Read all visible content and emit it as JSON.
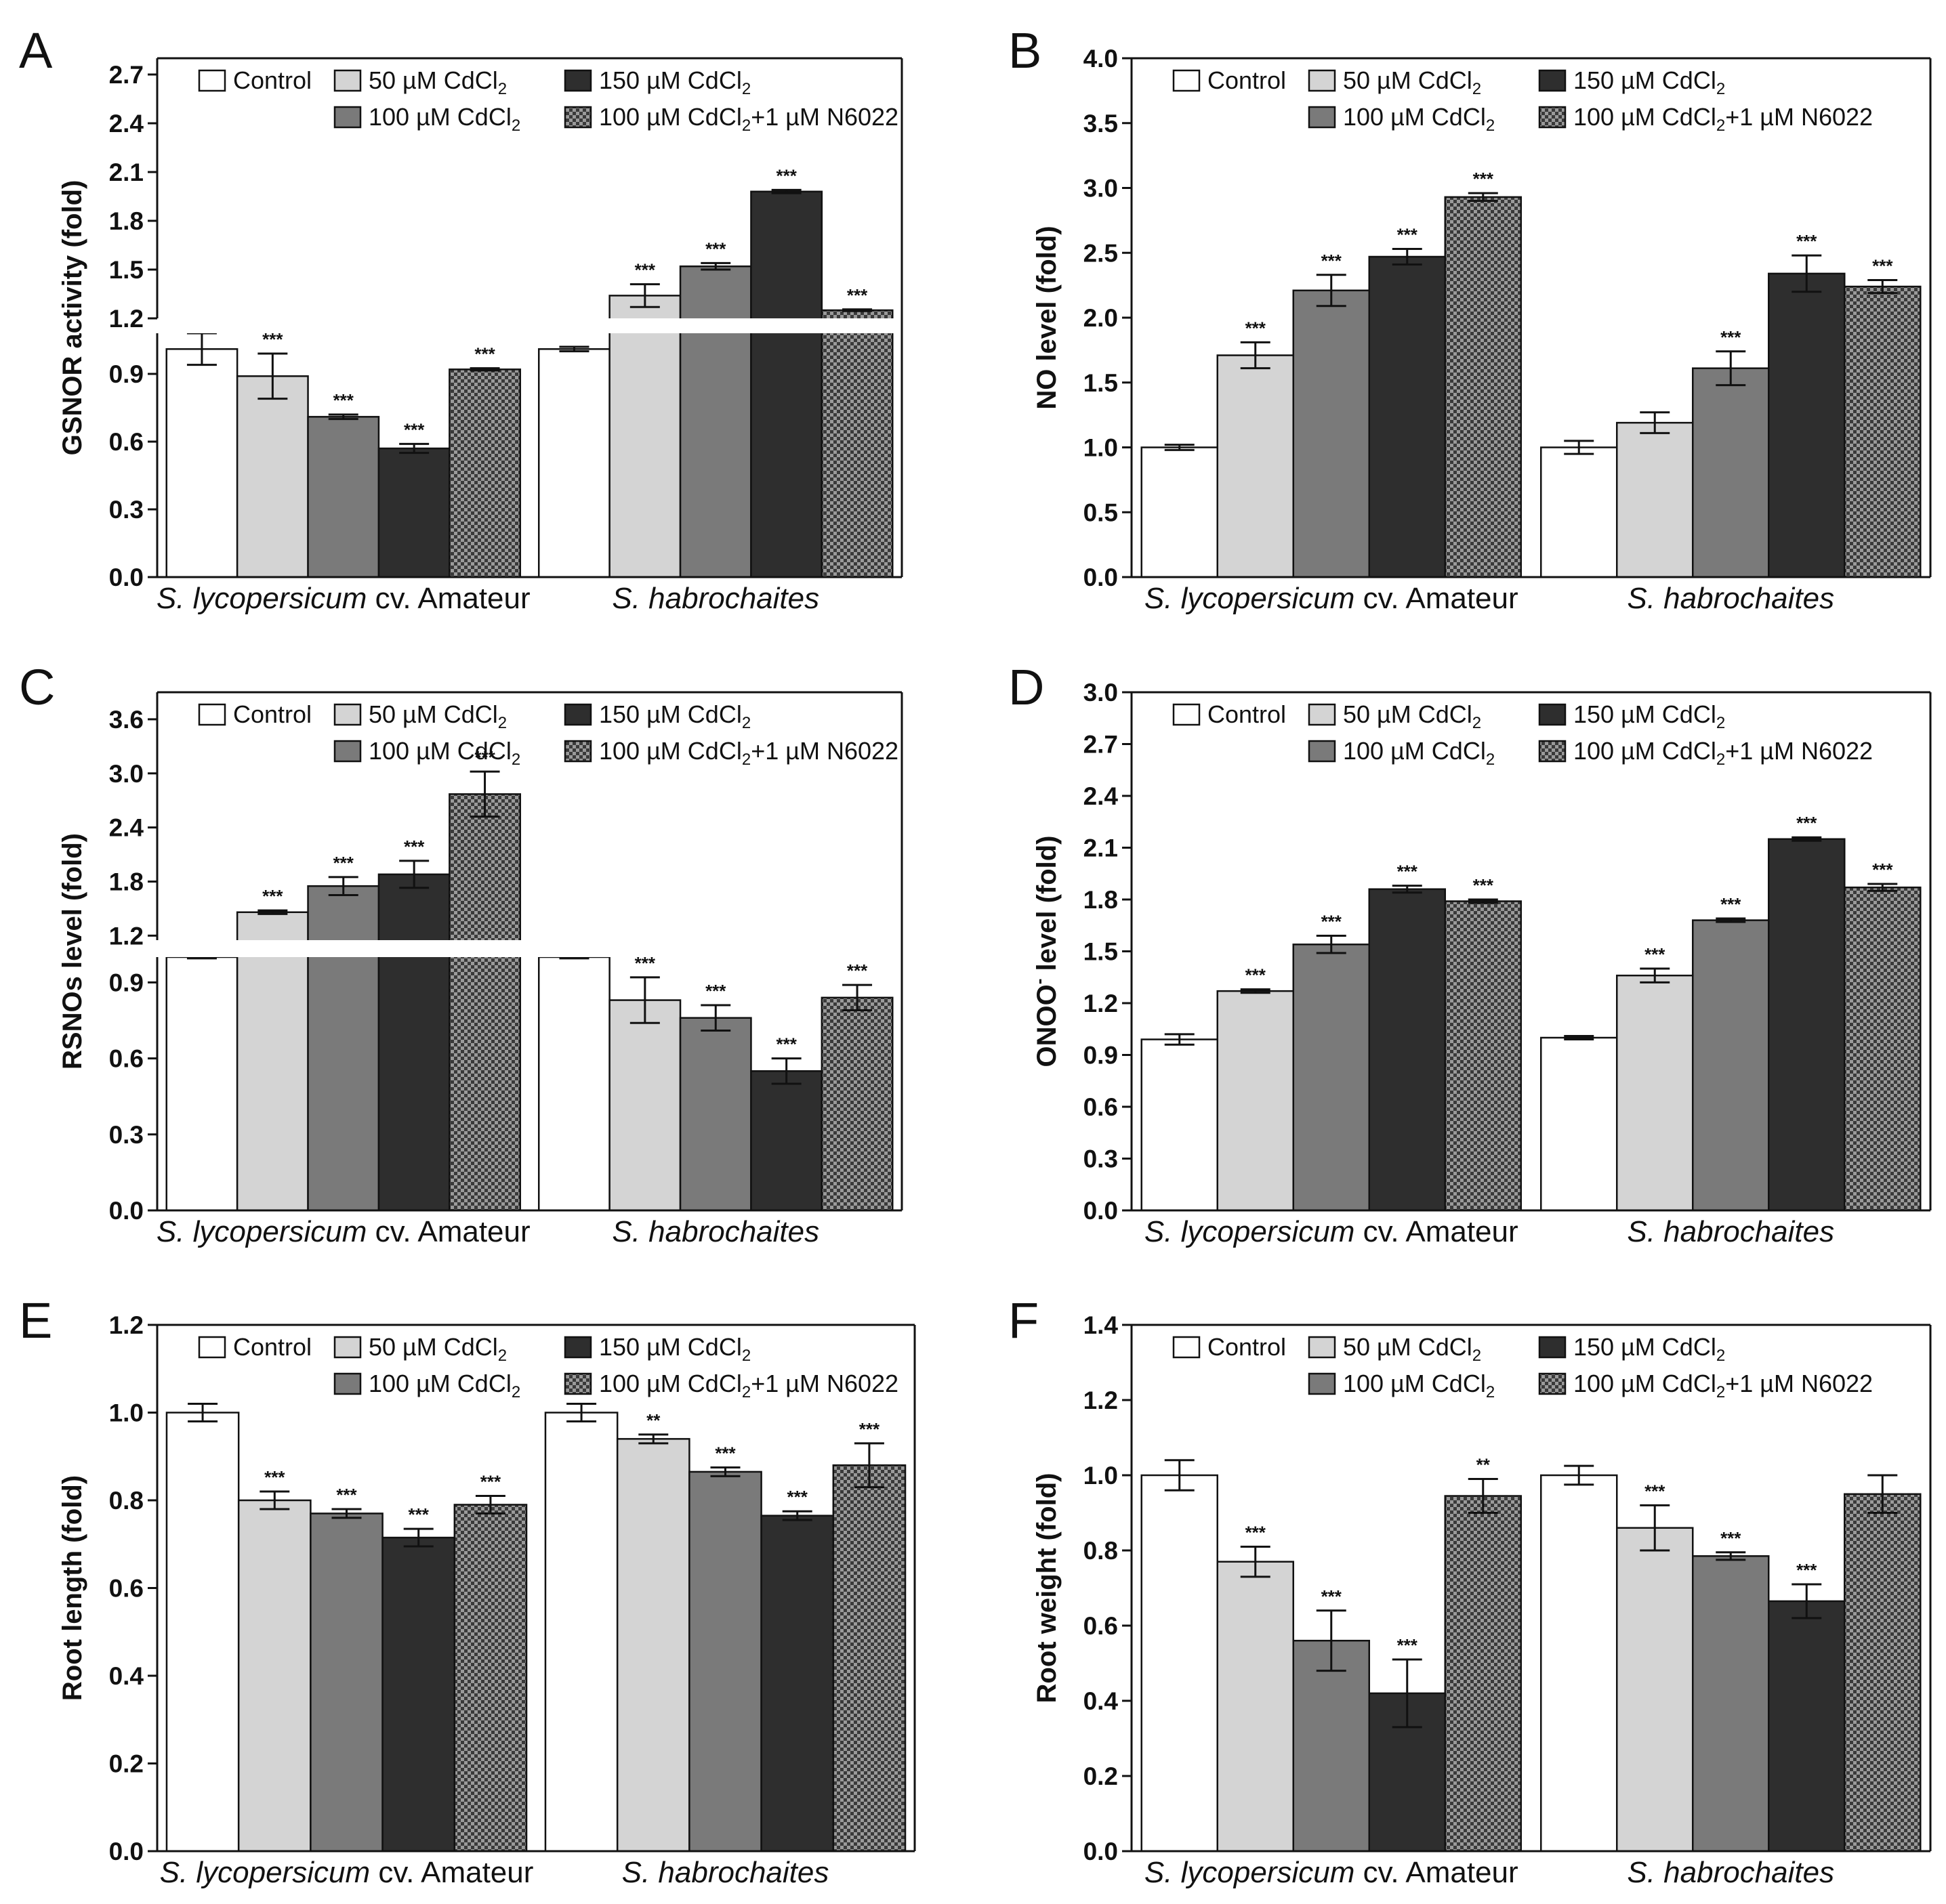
{
  "series_names": [
    "Control",
    "50 µM CdCl2",
    "100 µM CdCl2",
    "150 µM CdCl2",
    "100 µM CdCl2+1 µM N6022"
  ],
  "legend": [
    {
      "text": "Control",
      "sub": "",
      "tail": ""
    },
    {
      "text": "50 µM CdCl",
      "sub": "2",
      "tail": ""
    },
    {
      "text": "150 µM CdCl",
      "sub": "2",
      "tail": ""
    },
    {
      "text": "100 µM CdCl",
      "sub": "2",
      "tail": ""
    },
    {
      "text": "100 µM CdCl",
      "sub": "2",
      "tail": "+1 µM N6022"
    }
  ],
  "category_parts": [
    {
      "italic": "S. lycopersicum",
      "normal": " cv. Amateur"
    },
    {
      "italic": "S. habrochaites",
      "normal": ""
    }
  ],
  "colors": {
    "control": "#ffffff",
    "cd50": "#d4d4d4",
    "cd100": "#7a7a7a",
    "cd150": "#2e2e2e",
    "n6022_dark": "#3a3a3a",
    "n6022_light": "#9a9a9a",
    "axis": "#111111"
  },
  "chart_data": [
    {
      "panel": "A",
      "type": "bar",
      "ylabel": "GSNOR activity (fold)",
      "categories": [
        "S. lycopersicum cv. Amateur",
        "S. habrochaites"
      ],
      "broken_axis": true,
      "ylim_lower": [
        0,
        1.08
      ],
      "ylim_upper": [
        1.2,
        2.8
      ],
      "yticks": [
        "0.0",
        "0.3",
        "0.6",
        "0.9",
        "1.2",
        "1.5",
        "1.8",
        "2.1",
        "2.4",
        "2.7"
      ],
      "series": [
        {
          "name": "Control",
          "values": [
            1.01,
            1.01
          ],
          "errors": [
            0.07,
            0.01
          ],
          "sig": [
            "",
            ""
          ]
        },
        {
          "name": "50 µM CdCl2",
          "values": [
            0.89,
            1.34
          ],
          "errors": [
            0.1,
            0.07
          ],
          "sig": [
            "***",
            "***"
          ]
        },
        {
          "name": "100 µM CdCl2",
          "values": [
            0.71,
            1.52
          ],
          "errors": [
            0.01,
            0.02
          ],
          "sig": [
            "***",
            "***"
          ]
        },
        {
          "name": "150 µM CdCl2",
          "values": [
            0.57,
            1.98
          ],
          "errors": [
            0.02,
            0.01
          ],
          "sig": [
            "***",
            "***"
          ]
        },
        {
          "name": "100 µM CdCl2+1 µM N6022",
          "values": [
            0.92,
            1.25
          ],
          "errors": [
            0.005,
            0.005
          ],
          "sig": [
            "***",
            "***"
          ]
        }
      ]
    },
    {
      "panel": "B",
      "type": "bar",
      "ylabel": "NO level (fold)",
      "categories": [
        "S. lycopersicum cv. Amateur",
        "S. habrochaites"
      ],
      "broken_axis": false,
      "ylim": [
        0,
        4.0
      ],
      "yticks": [
        "0.0",
        "0.5",
        "1.0",
        "1.5",
        "2.0",
        "2.5",
        "3.0",
        "3.5",
        "4.0"
      ],
      "series": [
        {
          "name": "Control",
          "values": [
            1.0,
            1.0
          ],
          "errors": [
            0.02,
            0.05
          ],
          "sig": [
            "",
            ""
          ]
        },
        {
          "name": "50 µM CdCl2",
          "values": [
            1.71,
            1.19
          ],
          "errors": [
            0.1,
            0.08
          ],
          "sig": [
            "***",
            ""
          ]
        },
        {
          "name": "100 µM CdCl2",
          "values": [
            2.21,
            1.61
          ],
          "errors": [
            0.12,
            0.13
          ],
          "sig": [
            "***",
            "***"
          ]
        },
        {
          "name": "150 µM CdCl2",
          "values": [
            2.47,
            2.34
          ],
          "errors": [
            0.06,
            0.14
          ],
          "sig": [
            "***",
            "***"
          ]
        },
        {
          "name": "100 µM CdCl2+1 µM N6022",
          "values": [
            2.93,
            2.24
          ],
          "errors": [
            0.03,
            0.05
          ],
          "sig": [
            "***",
            "***"
          ]
        }
      ]
    },
    {
      "panel": "C",
      "type": "bar",
      "ylabel": "RSNOs level (fold)",
      "categories": [
        "S. lycopersicum cv. Amateur",
        "S. habrochaites"
      ],
      "broken_axis": true,
      "ylim_lower": [
        0,
        1.0
      ],
      "ylim_upper": [
        1.15,
        3.9
      ],
      "yticks": [
        "0.0",
        "0.3",
        "0.6",
        "0.9",
        "1.2",
        "1.8",
        "2.4",
        "3.0",
        "3.6"
      ],
      "series": [
        {
          "name": "Control",
          "values": [
            1.0,
            1.0
          ],
          "errors": [
            0.005,
            0.005
          ],
          "sig": [
            "",
            ""
          ]
        },
        {
          "name": "50 µM CdCl2",
          "values": [
            1.46,
            0.83
          ],
          "errors": [
            0.02,
            0.09
          ],
          "sig": [
            "***",
            "***"
          ]
        },
        {
          "name": "100 µM CdCl2",
          "values": [
            1.75,
            0.76
          ],
          "errors": [
            0.1,
            0.05
          ],
          "sig": [
            "***",
            "***"
          ]
        },
        {
          "name": "150 µM CdCl2",
          "values": [
            1.88,
            0.55
          ],
          "errors": [
            0.15,
            0.05
          ],
          "sig": [
            "***",
            "***"
          ]
        },
        {
          "name": "100 µM CdCl2+1 µM N6022",
          "values": [
            2.77,
            0.84
          ],
          "errors": [
            0.25,
            0.05
          ],
          "sig": [
            "***",
            "***"
          ]
        }
      ]
    },
    {
      "panel": "D",
      "type": "bar",
      "ylabel": "ONOO- level (fold)",
      "categories": [
        "S. lycopersicum cv. Amateur",
        "S. habrochaites"
      ],
      "broken_axis": false,
      "ylim": [
        0,
        3.0
      ],
      "yticks": [
        "0.0",
        "0.3",
        "0.6",
        "0.9",
        "1.2",
        "1.5",
        "1.8",
        "2.1",
        "2.4",
        "2.7",
        "3.0"
      ],
      "series": [
        {
          "name": "Control",
          "values": [
            0.99,
            1.0
          ],
          "errors": [
            0.03,
            0.01
          ],
          "sig": [
            "",
            ""
          ]
        },
        {
          "name": "50 µM CdCl2",
          "values": [
            1.27,
            1.36
          ],
          "errors": [
            0.01,
            0.04
          ],
          "sig": [
            "***",
            "***"
          ]
        },
        {
          "name": "100 µM CdCl2",
          "values": [
            1.54,
            1.68
          ],
          "errors": [
            0.05,
            0.01
          ],
          "sig": [
            "***",
            "***"
          ]
        },
        {
          "name": "150 µM CdCl2",
          "values": [
            1.86,
            2.15
          ],
          "errors": [
            0.02,
            0.01
          ],
          "sig": [
            "***",
            "***"
          ]
        },
        {
          "name": "100 µM CdCl2+1 µM N6022",
          "values": [
            1.79,
            1.87
          ],
          "errors": [
            0.01,
            0.02
          ],
          "sig": [
            "***",
            "***"
          ]
        }
      ]
    },
    {
      "panel": "E",
      "type": "bar",
      "ylabel": "Root length (fold)",
      "categories": [
        "S. lycopersicum cv. Amateur",
        "S. habrochaites"
      ],
      "broken_axis": false,
      "ylim": [
        0,
        1.2
      ],
      "yticks": [
        "0.0",
        "0.2",
        "0.4",
        "0.6",
        "0.8",
        "1.0",
        "1.2"
      ],
      "series": [
        {
          "name": "Control",
          "values": [
            1.0,
            1.0
          ],
          "errors": [
            0.02,
            0.02
          ],
          "sig": [
            "",
            ""
          ]
        },
        {
          "name": "50 µM CdCl2",
          "values": [
            0.8,
            0.94
          ],
          "errors": [
            0.02,
            0.01
          ],
          "sig": [
            "***",
            "**"
          ]
        },
        {
          "name": "100 µM CdCl2",
          "values": [
            0.77,
            0.865
          ],
          "errors": [
            0.01,
            0.01
          ],
          "sig": [
            "***",
            "***"
          ]
        },
        {
          "name": "150 µM CdCl2",
          "values": [
            0.715,
            0.765
          ],
          "errors": [
            0.02,
            0.01
          ],
          "sig": [
            "***",
            "***"
          ]
        },
        {
          "name": "100 µM CdCl2+1 µM N6022",
          "values": [
            0.79,
            0.88
          ],
          "errors": [
            0.02,
            0.05
          ],
          "sig": [
            "***",
            "***"
          ]
        }
      ]
    },
    {
      "panel": "F",
      "type": "bar",
      "ylabel": "Root weight (fold)",
      "categories": [
        "S. lycopersicum cv. Amateur",
        "S. habrochaites"
      ],
      "broken_axis": false,
      "ylim": [
        0,
        1.4
      ],
      "yticks": [
        "0.0",
        "0.2",
        "0.4",
        "0.6",
        "0.8",
        "1.0",
        "1.2",
        "1.4"
      ],
      "series": [
        {
          "name": "Control",
          "values": [
            1.0,
            1.0
          ],
          "errors": [
            0.04,
            0.025
          ],
          "sig": [
            "",
            ""
          ]
        },
        {
          "name": "50 µM CdCl2",
          "values": [
            0.77,
            0.86
          ],
          "errors": [
            0.04,
            0.06
          ],
          "sig": [
            "***",
            "***"
          ]
        },
        {
          "name": "100 µM CdCl2",
          "values": [
            0.56,
            0.785
          ],
          "errors": [
            0.08,
            0.01
          ],
          "sig": [
            "***",
            "***"
          ]
        },
        {
          "name": "150 µM CdCl2",
          "values": [
            0.42,
            0.665
          ],
          "errors": [
            0.09,
            0.045
          ],
          "sig": [
            "***",
            "***"
          ]
        },
        {
          "name": "100 µM CdCl2+1 µM N6022",
          "values": [
            0.945,
            0.95
          ],
          "errors": [
            0.045,
            0.05
          ],
          "sig": [
            "**",
            ""
          ]
        }
      ]
    }
  ]
}
